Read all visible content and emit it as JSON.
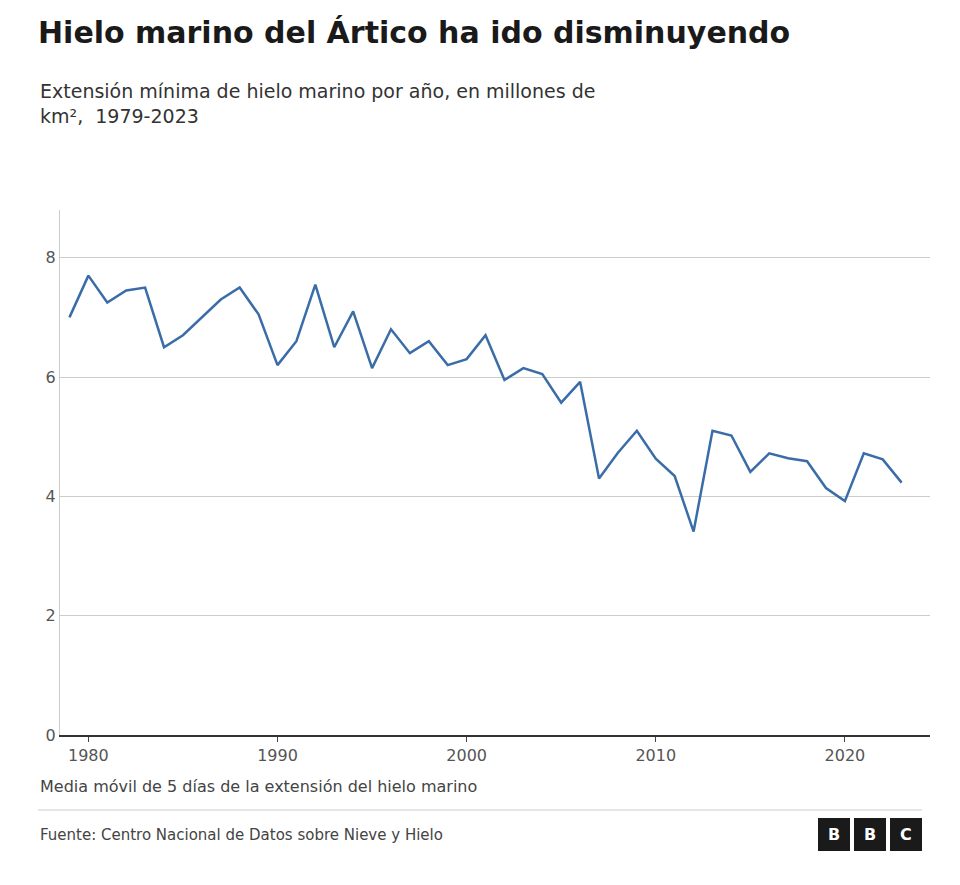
{
  "chart_data": {
    "type": "line",
    "title": "Hielo marino del Ártico ha ido disminuyendo",
    "subtitle": "Extensión mínima de hielo marino por año, en millones de\nkm²,  1979-2023",
    "note": "Media móvil de 5 días de la extensión del hielo marino",
    "source": "Fuente: Centro Nacional de Datos sobre Nieve y Hielo",
    "annotations": [
      "B",
      "B",
      "C"
    ],
    "color": "#3a6da8",
    "x": [
      1979,
      1980,
      1981,
      1982,
      1983,
      1984,
      1985,
      1986,
      1987,
      1988,
      1989,
      1990,
      1991,
      1992,
      1993,
      1994,
      1995,
      1996,
      1997,
      1998,
      1999,
      2000,
      2001,
      2002,
      2003,
      2004,
      2005,
      2006,
      2007,
      2008,
      2009,
      2010,
      2011,
      2012,
      2013,
      2014,
      2015,
      2016,
      2017,
      2018,
      2019,
      2020,
      2021,
      2022,
      2023
    ],
    "values": [
      7.0,
      7.7,
      7.25,
      7.45,
      7.5,
      6.5,
      6.7,
      7.0,
      7.3,
      7.5,
      7.05,
      6.2,
      6.6,
      7.55,
      6.5,
      7.1,
      6.15,
      6.8,
      6.4,
      6.6,
      6.2,
      6.3,
      6.7,
      5.95,
      6.15,
      6.05,
      5.57,
      5.92,
      4.3,
      4.73,
      5.1,
      4.63,
      4.34,
      3.41,
      5.1,
      5.02,
      4.41,
      4.72,
      4.64,
      4.59,
      4.14,
      3.92,
      4.72,
      4.62,
      4.23
    ],
    "xlim": [
      1978.5,
      2024.5
    ],
    "xticks": [
      1980,
      1990,
      2000,
      2010,
      2020
    ],
    "ylim": [
      0,
      8.8
    ],
    "yticks": [
      0,
      2,
      4,
      6,
      8
    ],
    "grid": true
  }
}
